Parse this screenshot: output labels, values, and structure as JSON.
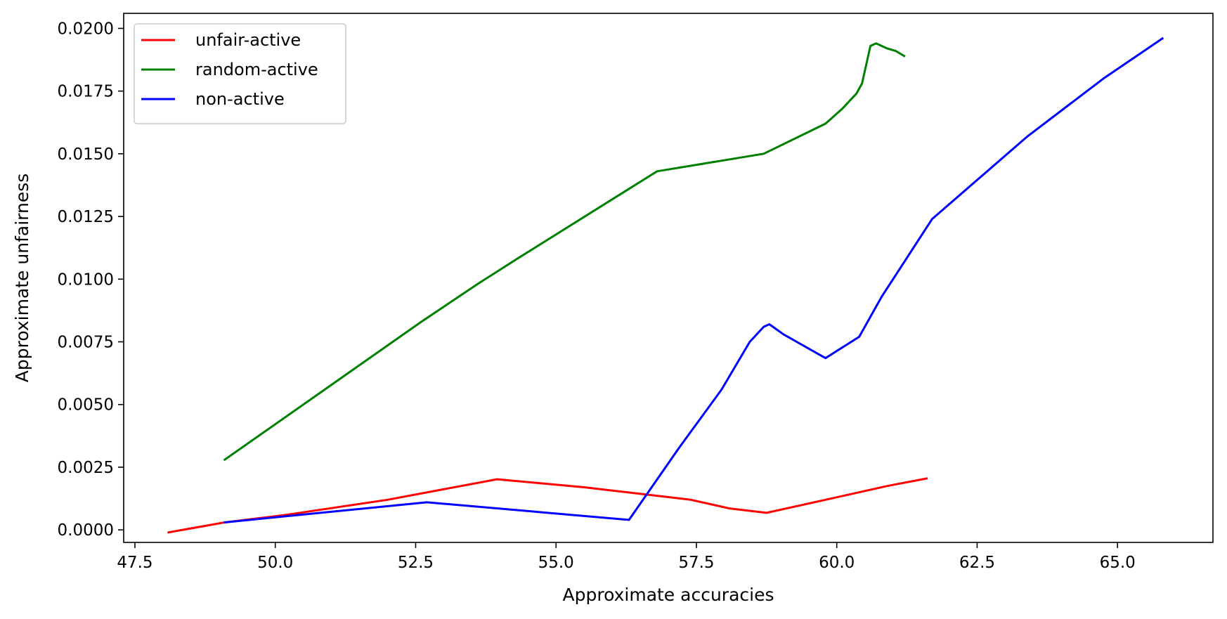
{
  "chart_data": {
    "type": "line",
    "title": "",
    "xlabel": "Approximate accuracies",
    "ylabel": "Approximate unfairness",
    "xlim": [
      47.3,
      66.7
    ],
    "ylim": [
      -0.0005,
      0.0206
    ],
    "xticks": [
      47.5,
      50.0,
      52.5,
      55.0,
      57.5,
      60.0,
      62.5,
      65.0
    ],
    "xtick_labels": [
      "47.5",
      "50.0",
      "52.5",
      "55.0",
      "57.5",
      "60.0",
      "62.5",
      "65.0"
    ],
    "yticks": [
      0.0,
      0.0025,
      0.005,
      0.0075,
      0.01,
      0.0125,
      0.015,
      0.0175,
      0.02
    ],
    "ytick_labels": [
      "0.0000",
      "0.0025",
      "0.0050",
      "0.0075",
      "0.0100",
      "0.0125",
      "0.0150",
      "0.0175",
      "0.0200"
    ],
    "grid": false,
    "legend_position": "top-left",
    "series": [
      {
        "name": "unfair-active",
        "color": "#ff0000",
        "x": [
          48.1,
          49.1,
          50.2,
          52.0,
          53.95,
          55.5,
          57.4,
          58.1,
          58.75,
          59.8,
          60.9,
          61.6
        ],
        "y": [
          -0.0001,
          0.0003,
          0.0006,
          0.0012,
          0.00202,
          0.0017,
          0.0012,
          0.00085,
          0.00068,
          0.0012,
          0.00175,
          0.00205
        ]
      },
      {
        "name": "random-active",
        "color": "#008000",
        "x": [
          49.1,
          52.6,
          53.6,
          54.3,
          56.8,
          58.7,
          59.8,
          60.1,
          60.35,
          60.45,
          60.6,
          60.7,
          60.9,
          61.05,
          61.2
        ],
        "y": [
          0.0028,
          0.0083,
          0.0098,
          0.0108,
          0.0143,
          0.015,
          0.0162,
          0.0168,
          0.0174,
          0.0178,
          0.0193,
          0.0194,
          0.0192,
          0.0191,
          0.0189
        ]
      },
      {
        "name": "non-active",
        "color": "#0000ff",
        "x": [
          49.1,
          50.0,
          52.7,
          56.3,
          57.2,
          57.95,
          58.45,
          58.7,
          58.8,
          59.05,
          59.8,
          60.4,
          60.8,
          61.7,
          63.4,
          64.75,
          65.8
        ],
        "y": [
          0.0003,
          0.0005,
          0.0011,
          0.0004,
          0.0033,
          0.0056,
          0.0075,
          0.0081,
          0.0082,
          0.0078,
          0.00685,
          0.0077,
          0.0093,
          0.0124,
          0.0157,
          0.018,
          0.0196
        ]
      }
    ]
  }
}
